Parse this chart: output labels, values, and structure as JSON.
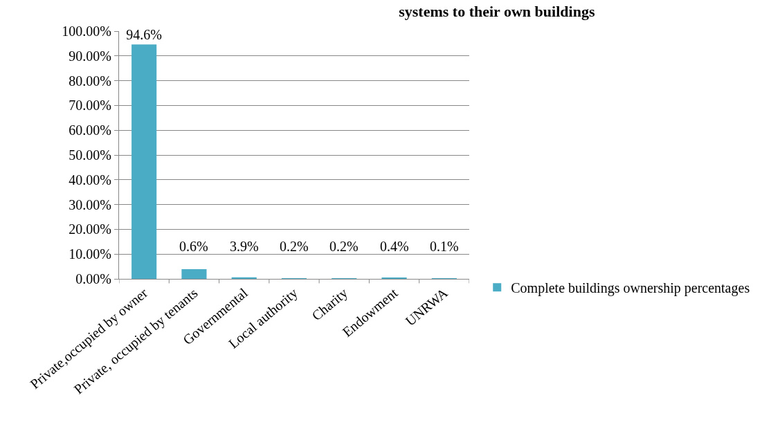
{
  "chart_data": {
    "type": "bar",
    "title": "systems to their own buildings",
    "categories": [
      "Private,occupied by owner",
      "Private, occupied by tenants",
      "Governmental",
      "Local authority",
      "Charity",
      "Endowment",
      "UNRWA"
    ],
    "series": [
      {
        "name": "Complete buildings ownership percentages",
        "color": "#4bacc6",
        "values": [
          94.6,
          3.9,
          0.6,
          0.2,
          0.2,
          0.4,
          0.1
        ],
        "value_labels": [
          "94.6%",
          null,
          null,
          null,
          null,
          null,
          null
        ]
      }
    ],
    "annotations": [
      "0.6%",
      "3.9%",
      "0.2%",
      "0.2%",
      "0.4%",
      "0.1%"
    ],
    "ylim": [
      0,
      100
    ],
    "yticks": [
      {
        "value": 0,
        "label": "0.00%"
      },
      {
        "value": 10,
        "label": "10.00%"
      },
      {
        "value": 20,
        "label": "20.00%"
      },
      {
        "value": 30,
        "label": "30.00%"
      },
      {
        "value": 40,
        "label": "40.00%"
      },
      {
        "value": 50,
        "label": "50.00%"
      },
      {
        "value": 60,
        "label": "60.00%"
      },
      {
        "value": 70,
        "label": "70.00%"
      },
      {
        "value": 80,
        "label": "80.00%"
      },
      {
        "value": 90,
        "label": "90.00%"
      },
      {
        "value": 100,
        "label": "100.00%"
      }
    ],
    "grid": "y",
    "legend": "right"
  }
}
